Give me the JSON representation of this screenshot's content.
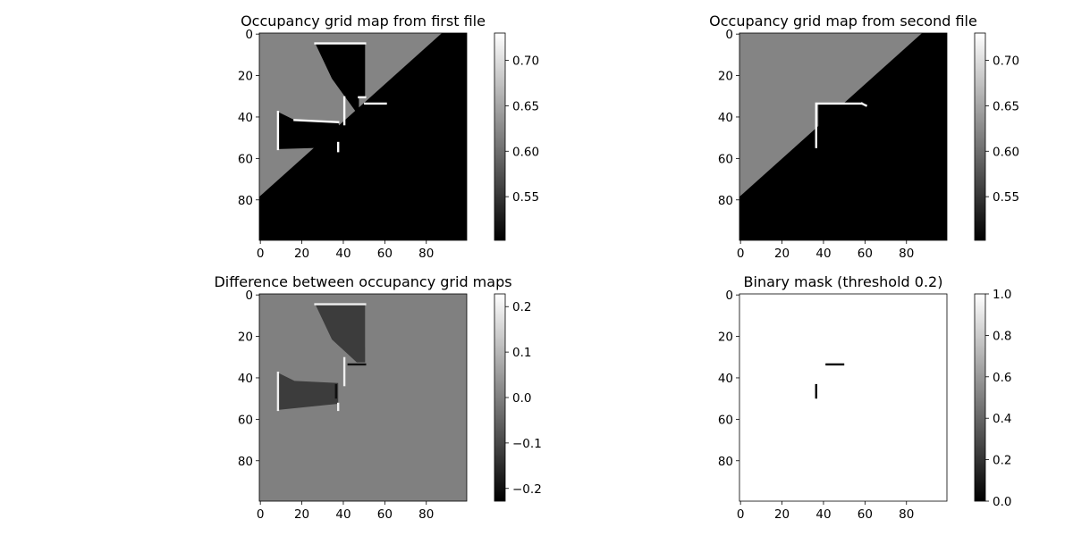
{
  "chart_data": [
    {
      "type": "heatmap",
      "title": "Occupancy grid map from first file",
      "grid_size": [
        100,
        100
      ],
      "colormap": "gray",
      "xticks": [
        0,
        20,
        40,
        60,
        80
      ],
      "yticks": [
        0,
        20,
        40,
        60,
        80
      ],
      "colorbar": {
        "range": [
          0.502,
          0.73
        ],
        "ticks": [
          0.55,
          0.6,
          0.65,
          0.7
        ],
        "tick_labels": [
          "0.55",
          "0.60",
          "0.65",
          "0.70"
        ]
      },
      "values_legend": {
        "unknown": 0.62,
        "free": 0.502,
        "occupied": 0.73
      },
      "regions": {
        "diagonal_boundary": [
          [
            0,
            79
          ],
          [
            88,
            0
          ]
        ],
        "free_polygons": [
          [
            [
              27,
              5
            ],
            [
              51,
              5
            ],
            [
              51,
              31
            ],
            [
              48,
              31
            ],
            [
              48,
              40
            ],
            [
              35,
              22
            ]
          ],
          [
            [
              9,
              38
            ],
            [
              17,
              42
            ],
            [
              38,
              43
            ],
            [
              41,
              55
            ],
            [
              9,
              56
            ]
          ]
        ],
        "occupied_segments": [
          [
            [
              27,
              5
            ],
            [
              51,
              5
            ]
          ],
          [
            [
              48,
              31
            ],
            [
              51,
              31
            ]
          ],
          [
            [
              51,
              34
            ],
            [
              61,
              34
            ]
          ],
          [
            [
              41,
              31
            ],
            [
              41,
              44
            ]
          ],
          [
            [
              9,
              38
            ],
            [
              9,
              56
            ]
          ],
          [
            [
              17,
              42
            ],
            [
              38,
              43
            ]
          ],
          [
            [
              38,
              53
            ],
            [
              38,
              57
            ]
          ]
        ]
      }
    },
    {
      "type": "heatmap",
      "title": "Occupancy grid map from  second file",
      "grid_size": [
        100,
        100
      ],
      "colormap": "gray",
      "xticks": [
        0,
        20,
        40,
        60,
        80
      ],
      "yticks": [
        0,
        20,
        40,
        60,
        80
      ],
      "colorbar": {
        "range": [
          0.502,
          0.73
        ],
        "ticks": [
          0.55,
          0.6,
          0.65,
          0.7
        ],
        "tick_labels": [
          "0.55",
          "0.60",
          "0.65",
          "0.70"
        ]
      },
      "values_legend": {
        "unknown": 0.62,
        "free": 0.502,
        "occupied": 0.73
      },
      "regions": {
        "diagonal_boundary": [
          [
            0,
            79
          ],
          [
            88,
            0
          ]
        ],
        "free_polygons": [
          [
            [
              38,
              34
            ],
            [
              59,
              34
            ],
            [
              38,
              56
            ]
          ]
        ],
        "occupied_segments": [
          [
            [
              38,
              34
            ],
            [
              59,
              34
            ]
          ],
          [
            [
              59,
              34
            ],
            [
              61,
              35
            ]
          ],
          [
            [
              37,
              34
            ],
            [
              37,
              55
            ]
          ]
        ]
      }
    },
    {
      "type": "heatmap",
      "title": "Difference between occupancy grid maps",
      "grid_size": [
        100,
        100
      ],
      "colormap": "gray",
      "xticks": [
        0,
        20,
        40,
        60,
        80
      ],
      "yticks": [
        0,
        20,
        40,
        60,
        80
      ],
      "colorbar": {
        "range": [
          -0.228,
          0.228
        ],
        "ticks": [
          -0.2,
          -0.1,
          0.0,
          0.1,
          0.2
        ],
        "tick_labels": [
          "−0.2",
          "−0.1",
          "0.0",
          "0.1",
          "0.2"
        ]
      },
      "values_legend": {
        "background": 0.0,
        "changed": -0.12,
        "positive_edge": 0.2,
        "negative_edge": -0.2
      },
      "regions": {
        "changed_polygons": [
          [
            [
              27,
              5
            ],
            [
              51,
              5
            ],
            [
              51,
              33
            ],
            [
              47,
              33
            ],
            [
              35,
              22
            ]
          ],
          [
            [
              9,
              38
            ],
            [
              17,
              42
            ],
            [
              38,
              43
            ],
            [
              38,
              53
            ],
            [
              9,
              56
            ]
          ]
        ],
        "positive_segments": [
          [
            [
              27,
              5
            ],
            [
              51,
              5
            ]
          ],
          [
            [
              9,
              38
            ],
            [
              9,
              56
            ]
          ],
          [
            [
              41,
              31
            ],
            [
              41,
              44
            ]
          ],
          [
            [
              38,
              53
            ],
            [
              38,
              56
            ]
          ]
        ],
        "negative_segments": [
          [
            [
              43,
              34
            ],
            [
              51,
              34
            ]
          ],
          [
            [
              37,
              44
            ],
            [
              37,
              50
            ]
          ]
        ]
      }
    },
    {
      "type": "heatmap",
      "title": "Binary mask (threshold 0.2)",
      "grid_size": [
        100,
        100
      ],
      "colormap": "gray",
      "xticks": [
        0,
        20,
        40,
        60,
        80
      ],
      "yticks": [
        0,
        20,
        40,
        60,
        80
      ],
      "colorbar": {
        "range": [
          0.0,
          1.0
        ],
        "ticks": [
          0.0,
          0.2,
          0.4,
          0.6,
          0.8,
          1.0
        ],
        "tick_labels": [
          "0.0",
          "0.2",
          "0.4",
          "0.6",
          "0.8",
          "1.0"
        ]
      },
      "values_legend": {
        "background": 1.0,
        "mask": 0.0
      },
      "regions": {
        "mask_segments": [
          [
            [
              42,
              34
            ],
            [
              50,
              34
            ]
          ],
          [
            [
              37,
              44
            ],
            [
              37,
              50
            ]
          ]
        ]
      }
    }
  ]
}
